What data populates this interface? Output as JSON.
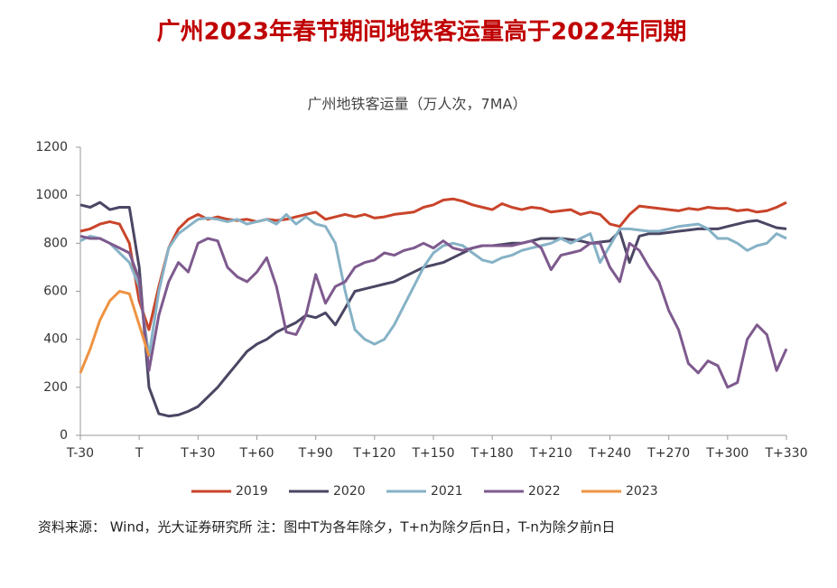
{
  "chart_data": {
    "type": "line",
    "title": "广州2023年春节期间地铁客运量高于2022年同期",
    "subtitle": "广州地铁客运量（万人次，7MA）",
    "source": "资料来源： Wind，光大证券研究所 注：图中T为各年除夕，T+n为除夕后n日，T-n为除夕前n日",
    "x": [
      -30,
      -25,
      -20,
      -15,
      -10,
      -5,
      0,
      5,
      10,
      15,
      20,
      25,
      30,
      35,
      40,
      45,
      50,
      55,
      60,
      65,
      70,
      75,
      80,
      85,
      90,
      95,
      100,
      105,
      110,
      115,
      120,
      125,
      130,
      135,
      140,
      145,
      150,
      155,
      160,
      165,
      170,
      175,
      180,
      185,
      190,
      195,
      200,
      205,
      210,
      215,
      220,
      225,
      230,
      235,
      240,
      245,
      250,
      255,
      260,
      265,
      270,
      275,
      280,
      285,
      290,
      295,
      300,
      305,
      310,
      315,
      320,
      325,
      330
    ],
    "xlim": [
      -30,
      330
    ],
    "xticks": [
      {
        "value": -30,
        "label": "T-30"
      },
      {
        "value": 0,
        "label": "T"
      },
      {
        "value": 30,
        "label": "T+30"
      },
      {
        "value": 60,
        "label": "T+60"
      },
      {
        "value": 90,
        "label": "T+90"
      },
      {
        "value": 120,
        "label": "T+120"
      },
      {
        "value": 150,
        "label": "T+150"
      },
      {
        "value": 180,
        "label": "T+180"
      },
      {
        "value": 210,
        "label": "T+210"
      },
      {
        "value": 240,
        "label": "T+240"
      },
      {
        "value": 270,
        "label": "T+270"
      },
      {
        "value": 300,
        "label": "T+300"
      },
      {
        "value": 330,
        "label": "T+330"
      }
    ],
    "ylim": [
      0,
      1200
    ],
    "yticks": [
      0,
      200,
      400,
      600,
      800,
      1000,
      1200
    ],
    "series": [
      {
        "name": "2019",
        "color": "#c9442a",
        "values": [
          850,
          860,
          880,
          890,
          880,
          800,
          560,
          440,
          620,
          780,
          860,
          900,
          920,
          900,
          910,
          900,
          895,
          900,
          890,
          900,
          895,
          900,
          910,
          920,
          930,
          900,
          910,
          920,
          910,
          920,
          905,
          910,
          920,
          925,
          930,
          950,
          960,
          980,
          985,
          975,
          960,
          950,
          940,
          965,
          950,
          940,
          950,
          945,
          930,
          935,
          940,
          920,
          930,
          920,
          880,
          870,
          920,
          955,
          950,
          945,
          940,
          935,
          945,
          940,
          950,
          945,
          945,
          935,
          940,
          930,
          935,
          950,
          970
        ]
      },
      {
        "name": "2020",
        "color": "#4a4663",
        "values": [
          960,
          950,
          970,
          940,
          950,
          950,
          700,
          200,
          90,
          80,
          85,
          100,
          120,
          160,
          200,
          250,
          300,
          350,
          380,
          400,
          430,
          450,
          470,
          500,
          490,
          510,
          460,
          530,
          600,
          610,
          620,
          630,
          640,
          660,
          680,
          700,
          710,
          720,
          740,
          760,
          780,
          790,
          790,
          795,
          800,
          800,
          810,
          820,
          820,
          820,
          815,
          810,
          800,
          805,
          810,
          850,
          720,
          830,
          840,
          840,
          845,
          850,
          855,
          860,
          860,
          860,
          870,
          880,
          890,
          895,
          880,
          865,
          860
        ]
      },
      {
        "name": "2021",
        "color": "#86b2c6",
        "values": [
          810,
          830,
          820,
          800,
          760,
          720,
          620,
          330,
          600,
          780,
          840,
          870,
          900,
          905,
          900,
          890,
          900,
          880,
          890,
          900,
          880,
          920,
          880,
          910,
          880,
          870,
          800,
          600,
          440,
          400,
          380,
          400,
          460,
          540,
          620,
          700,
          760,
          790,
          800,
          790,
          760,
          730,
          720,
          740,
          750,
          770,
          780,
          790,
          800,
          820,
          800,
          820,
          840,
          720,
          790,
          860,
          860,
          855,
          850,
          850,
          860,
          870,
          875,
          880,
          860,
          820,
          820,
          800,
          770,
          790,
          800,
          840,
          820
        ]
      },
      {
        "name": "2022",
        "color": "#7e5a8e",
        "values": [
          830,
          820,
          820,
          800,
          780,
          760,
          650,
          270,
          500,
          640,
          720,
          680,
          800,
          820,
          810,
          700,
          660,
          640,
          680,
          740,
          620,
          430,
          420,
          500,
          670,
          550,
          620,
          640,
          700,
          720,
          730,
          760,
          750,
          770,
          780,
          800,
          780,
          810,
          780,
          770,
          780,
          790,
          790,
          790,
          790,
          800,
          810,
          780,
          690,
          750,
          760,
          770,
          800,
          800,
          700,
          640,
          800,
          770,
          700,
          640,
          520,
          440,
          300,
          260,
          310,
          290,
          200,
          220,
          400,
          460,
          420,
          270,
          360
        ]
      },
      {
        "name": "2023",
        "color": "#ee9342",
        "values": [
          260,
          360,
          480,
          560,
          600,
          590,
          460,
          330,
          null,
          null,
          null,
          null,
          null,
          null,
          null,
          null,
          null,
          null,
          null,
          null,
          null,
          null,
          null,
          null,
          null,
          null,
          null,
          null,
          null,
          null,
          null,
          null,
          null,
          null,
          null,
          null,
          null,
          null,
          null,
          null,
          null,
          null,
          null,
          null,
          null,
          null,
          null,
          null,
          null,
          null,
          null,
          null,
          null,
          null,
          null,
          null,
          null,
          null,
          null,
          null,
          null,
          null,
          null,
          null,
          null,
          null,
          null,
          null,
          null,
          null,
          null,
          null,
          null
        ]
      }
    ]
  }
}
